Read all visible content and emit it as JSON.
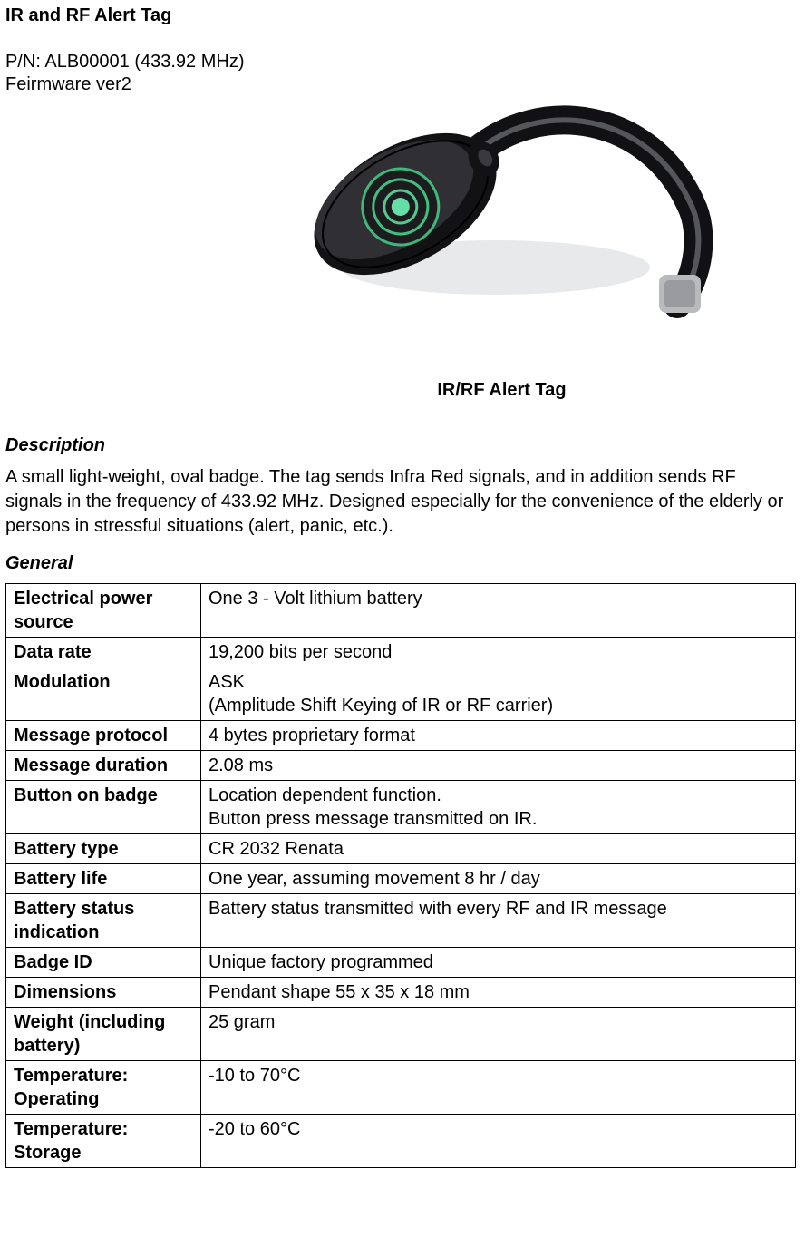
{
  "title": "IR and RF Alert Tag",
  "pn_line": "P/N: ALB00001 (433.92 MHz)",
  "fw_line": "Feirmware ver2",
  "caption": "IR/RF Alert Tag",
  "desc_heading": "Description",
  "description": "A small light-weight, oval badge. The tag sends Infra Red signals, and in addition sends RF signals in the frequency of 433.92 MHz. Designed especially for the convenience of the elderly or persons in stressful situations (alert, panic, etc.).",
  "general_heading": "General",
  "rows": [
    {
      "label": "Electrical power source",
      "value": "One 3 - Volt lithium battery"
    },
    {
      "label": "Data rate",
      "value": "19,200 bits per second"
    },
    {
      "label": "Modulation",
      "value": "ASK\n(Amplitude Shift Keying of IR or RF carrier)"
    },
    {
      "label": "Message protocol",
      "value": "4 bytes proprietary format"
    },
    {
      "label": "Message duration",
      "value": "2.08 ms"
    },
    {
      "label": "Button on badge",
      "value": "Location dependent function.\nButton press message transmitted on IR."
    },
    {
      "label": "Battery type",
      "value": "CR 2032 Renata"
    },
    {
      "label": "Battery life",
      "value": "One year, assuming movement 8 hr / day"
    },
    {
      "label": "Battery status indication",
      "value": "Battery status transmitted with every RF and IR message"
    },
    {
      "label": "Badge ID",
      "value": "Unique factory programmed"
    },
    {
      "label": "Dimensions",
      "value": "Pendant shape 55 x 35 x 18 mm"
    },
    {
      "label": "Weight (including battery)",
      "value": "25 gram"
    },
    {
      "label": "Temperature: Operating",
      "value": "-10 to 70°C"
    },
    {
      "label": "Temperature: Storage",
      "value": "-20 to 60°C"
    }
  ],
  "image": {
    "bg": "#ffffff",
    "shadow": "#dcdde0",
    "body": "#18181a",
    "body_hi": "#3a3a3e",
    "button_ring": "#2e2e2e",
    "button_glow": "#5de6a6",
    "lanyard": "#111113",
    "lanyard_shine": "#6b6b70",
    "clip": "#b9babc"
  }
}
